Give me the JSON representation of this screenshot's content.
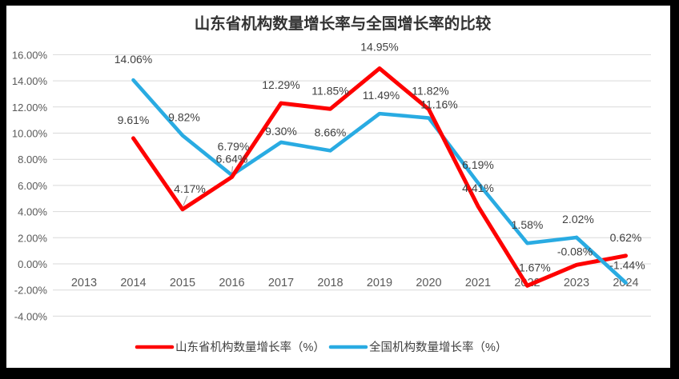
{
  "page": {
    "background": "#000000",
    "panel_background": "#FFFFFF"
  },
  "chart_data": {
    "type": "line",
    "title": "山东省机构数量增长率与全国增长率的比较",
    "categories": [
      "2013",
      "2014",
      "2015",
      "2016",
      "2017",
      "2018",
      "2019",
      "2020",
      "2021",
      "2022",
      "2023",
      "2024"
    ],
    "y_ticks": [
      16,
      14,
      12,
      10,
      8,
      6,
      4,
      2,
      0,
      -2,
      -4
    ],
    "ylim": [
      -4,
      16
    ],
    "value_format": "percent_2dp",
    "grid": "horizontal",
    "legend_position": "bottom",
    "series": [
      {
        "name": "山东省机构数量增长率（%）",
        "color": "#FE0000",
        "values": [
          null,
          9.61,
          4.17,
          6.64,
          12.29,
          11.85,
          14.95,
          11.82,
          4.41,
          -1.67,
          -0.08,
          0.62
        ],
        "label_offsets": {
          "2": [
            9,
            -3
          ],
          "6": [
            0,
            -4
          ],
          "7": [
            2,
            0
          ],
          "9": [
            7,
            0
          ],
          "10": [
            -2,
            6
          ]
        }
      },
      {
        "name": "全国机构数量增长率（%）",
        "color": "#29ABE2",
        "values": [
          null,
          14.06,
          9.82,
          6.79,
          9.3,
          8.66,
          11.49,
          11.16,
          6.19,
          1.58,
          2.02,
          -1.44
        ],
        "label_offsets": {
          "1": [
            0,
            -3
          ],
          "2": [
            2,
            0
          ],
          "3": [
            2,
            -13
          ],
          "4": [
            0,
            9
          ],
          "6": [
            2,
            0
          ],
          "7": [
            13,
            6
          ],
          "10": [
            2,
            0
          ],
          "11": [
            2,
            1
          ]
        }
      }
    ],
    "colors": {
      "gridline": "#D9D9D9",
      "axis_label": "#595959",
      "data_label": "#3F3F3F",
      "title_text": "#333333",
      "legend_label": "#3F3F3F",
      "leader_line": "#A6A6A6"
    }
  }
}
